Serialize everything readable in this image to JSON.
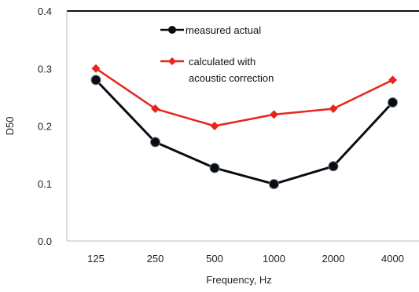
{
  "chart_data": {
    "type": "line",
    "categories": [
      "125",
      "250",
      "500",
      "1000",
      "2000",
      "4000"
    ],
    "series": [
      {
        "name": "measured actual",
        "values": [
          0.28,
          0.172,
          0.127,
          0.099,
          0.13,
          0.241
        ],
        "color": "#0b0b12",
        "marker": "circle"
      },
      {
        "name": "calculated with acoustic correction",
        "name_lines": [
          "calculated with",
          "acoustic correction"
        ],
        "values": [
          0.3,
          0.23,
          0.2,
          0.22,
          0.23,
          0.28
        ],
        "color": "#e8251c",
        "marker": "diamond"
      }
    ],
    "title": "",
    "xlabel": "Frequency, Hz",
    "ylabel": "D50",
    "ylim": [
      0,
      0.4
    ],
    "yticks": [
      "0.0",
      "0.1",
      "0.2",
      "0.3",
      "0.4"
    ],
    "grid": false,
    "legend_position": "top-center"
  }
}
